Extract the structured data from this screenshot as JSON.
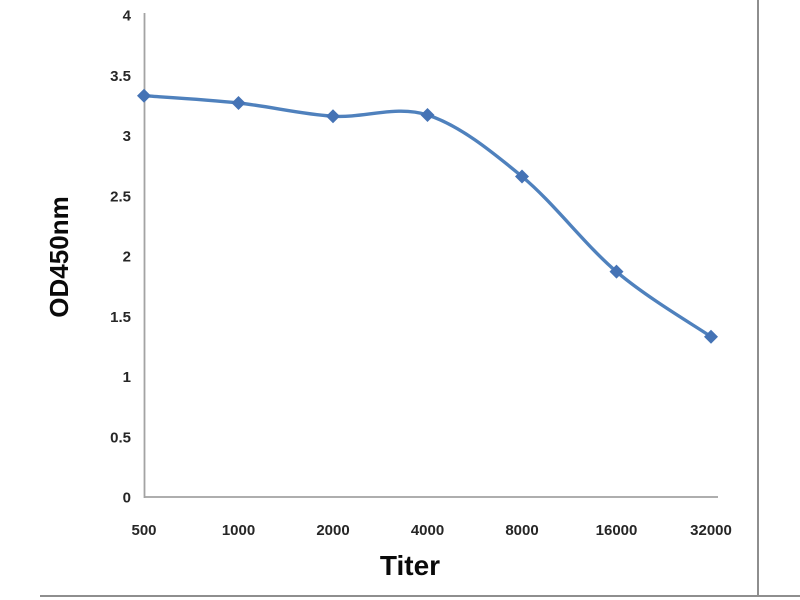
{
  "chart_data": {
    "type": "line",
    "title": "",
    "xlabel": "Titer",
    "ylabel": "OD450nm",
    "x": [
      500,
      1000,
      2000,
      4000,
      8000,
      16000,
      32000
    ],
    "x_tick_labels": [
      "500",
      "1000",
      "2000",
      "4000",
      "8000",
      "16000",
      "32000"
    ],
    "series": [
      {
        "name": "OD450nm",
        "values": [
          3.33,
          3.27,
          3.16,
          3.17,
          2.66,
          1.87,
          1.33
        ]
      }
    ],
    "ylim": [
      0,
      4
    ],
    "ytick_step": 0.5,
    "y_tick_labels": [
      "4",
      "3.5",
      "3",
      "2.5",
      "2",
      "1.5",
      "1",
      "0.5",
      "0"
    ],
    "grid": false,
    "legend": "none",
    "line_style": "smooth",
    "marker": "diamond",
    "colors": {
      "line": "#4F81BD",
      "marker": "#4573B5",
      "axis": "#A3A3A3",
      "tick_text": "#262626",
      "frame_border": "#8E8E8E"
    }
  }
}
